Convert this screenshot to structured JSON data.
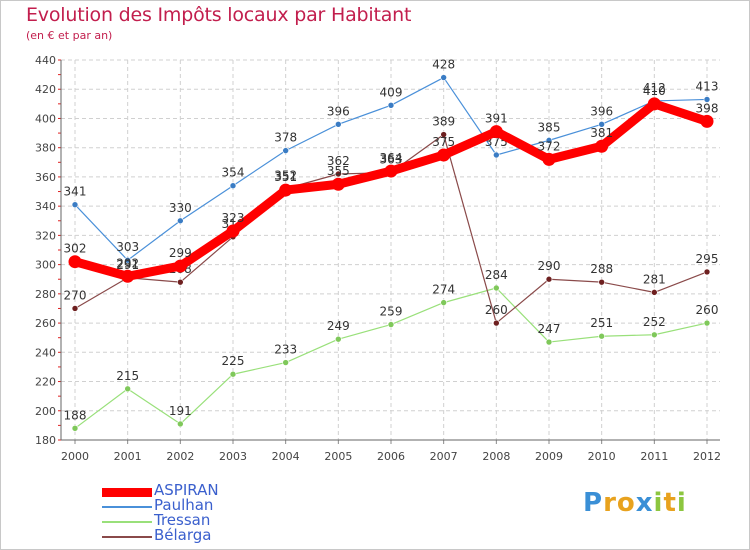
{
  "title": "Evolution des Impôts locaux par Habitant",
  "subtitle": "(en € et par an)",
  "logo": {
    "letters": [
      {
        "ch": "P",
        "color": "#3a8fd6"
      },
      {
        "ch": "r",
        "color": "#e8a21e"
      },
      {
        "ch": "o",
        "color": "#e8a21e"
      },
      {
        "ch": "x",
        "color": "#3a8fd6"
      },
      {
        "ch": "i",
        "color": "#8cc63f"
      },
      {
        "ch": "t",
        "color": "#e8a21e"
      },
      {
        "ch": "i",
        "color": "#8cc63f"
      }
    ]
  },
  "chart_data": {
    "type": "line",
    "x": [
      "2000",
      "2001",
      "2002",
      "2003",
      "2004",
      "2005",
      "2006",
      "2007",
      "2008",
      "2009",
      "2010",
      "2011",
      "2012"
    ],
    "ylim": [
      180,
      440
    ],
    "yticks": [
      "180",
      "200",
      "220",
      "240",
      "260",
      "280",
      "300",
      "320",
      "340",
      "360",
      "380",
      "400",
      "420",
      "440"
    ],
    "grid": true,
    "legend_position": "bottom-left",
    "series": [
      {
        "name": "Paulhan",
        "color": "#4a90d9",
        "marker": "#3a7cc4",
        "width": 1.2,
        "labels": [
          "341",
          "303",
          "330",
          "354",
          "378",
          "396",
          "409",
          "428",
          "375",
          "385",
          "396",
          "412",
          "413"
        ],
        "values": [
          341,
          303,
          330,
          354,
          378,
          396,
          409,
          428,
          375,
          385,
          396,
          412,
          413
        ]
      },
      {
        "name": "Tressan",
        "color": "#99e07a",
        "marker": "#7fc85a",
        "width": 1.2,
        "labels": [
          "188",
          "215",
          "191",
          "225",
          "233",
          "249",
          "259",
          "274",
          "284",
          "247",
          "251",
          "252",
          "260"
        ],
        "values": [
          188,
          215,
          191,
          225,
          233,
          249,
          259,
          274,
          284,
          247,
          251,
          252,
          260
        ]
      },
      {
        "name": "Bélarga",
        "color": "#8a4a4a",
        "marker": "#6e2020",
        "width": 1.2,
        "labels": [
          "270",
          "291",
          "288",
          "319",
          "352",
          "362",
          "363",
          "389",
          "260",
          "290",
          "288",
          "281",
          "295"
        ],
        "values": [
          270,
          291,
          288,
          319,
          352,
          362,
          363,
          389,
          260,
          290,
          288,
          281,
          295
        ]
      },
      {
        "name": "ASPIRAN",
        "color": "#ff0000",
        "marker": "#ff0000",
        "width": 9,
        "labels": [
          "302",
          "292",
          "299",
          "323",
          "351",
          "355",
          "364",
          "375",
          "391",
          "372",
          "381",
          "410",
          "398"
        ],
        "values": [
          302,
          292,
          299,
          323,
          351,
          355,
          364,
          375,
          391,
          372,
          381,
          410,
          398
        ]
      }
    ]
  },
  "legend": [
    {
      "name": "ASPIRAN",
      "color": "#ff0000",
      "thick": 9
    },
    {
      "name": "Paulhan",
      "color": "#4a90d9",
      "thick": 2
    },
    {
      "name": "Tressan",
      "color": "#99e07a",
      "thick": 2
    },
    {
      "name": "Bélarga",
      "color": "#8a4a4a",
      "thick": 2
    }
  ]
}
